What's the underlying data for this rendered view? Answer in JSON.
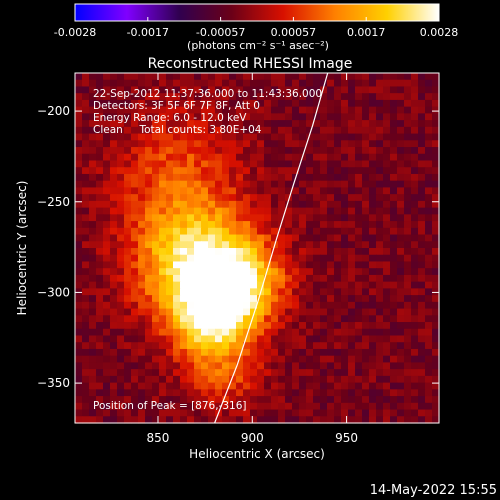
{
  "chart_data": {
    "type": "heatmap",
    "title": "Reconstructed RHESSI Image",
    "xlabel": "Heliocentric X (arcsec)",
    "ylabel": "Heliocentric Y (arcsec)",
    "xlim": [
      806,
      999
    ],
    "ylim": [
      -372,
      -179
    ],
    "x_ticks": [
      850,
      900,
      950
    ],
    "y_ticks": [
      -200,
      -250,
      -300,
      -350
    ],
    "colorbar": {
      "units_label": "(photons cm⁻² s⁻¹ asec⁻²)",
      "range": [
        -0.0028,
        0.0028
      ],
      "tick_labels": [
        "-0.0028",
        "-0.0017",
        "-0.00057",
        "0.00057",
        "0.0017",
        "0.0028"
      ],
      "colors": [
        "#0000ff",
        "#8000ff",
        "#300050",
        "#6a0018",
        "#d81000",
        "#ff8000",
        "#ffd000",
        "#ffffff"
      ]
    },
    "annotations": [
      "22-Sep-2012 11:37:36.000 to 11:43:36.000",
      "Detectors: 3F 5F 6F 7F 8F, Att 0",
      "Energy Range: 6.0 - 12.0 keV",
      "Clean     Total counts: 3.80E+04"
    ],
    "peak_label": "Position of Peak = [876,-316]",
    "peak_position": [
      876,
      -316
    ],
    "limb_curve": [
      [
        880,
        -372
      ],
      [
        892,
        -340
      ],
      [
        903,
        -305
      ],
      [
        913,
        -270
      ],
      [
        922,
        -240
      ],
      [
        932,
        -208
      ],
      [
        940,
        -179
      ]
    ],
    "sources": [
      {
        "x": 870,
        "y": -285,
        "amp": 1.0,
        "sigma": 22
      },
      {
        "x": 878,
        "y": -316,
        "amp": 0.8,
        "sigma": 14
      },
      {
        "x": 895,
        "y": -295,
        "amp": 0.7,
        "sigma": 16
      },
      {
        "x": 860,
        "y": -235,
        "amp": 0.4,
        "sigma": 24
      },
      {
        "x": 885,
        "y": -345,
        "amp": 0.35,
        "sigma": 15
      }
    ]
  },
  "footer": {
    "timestamp": "14-May-2022 15:55"
  }
}
